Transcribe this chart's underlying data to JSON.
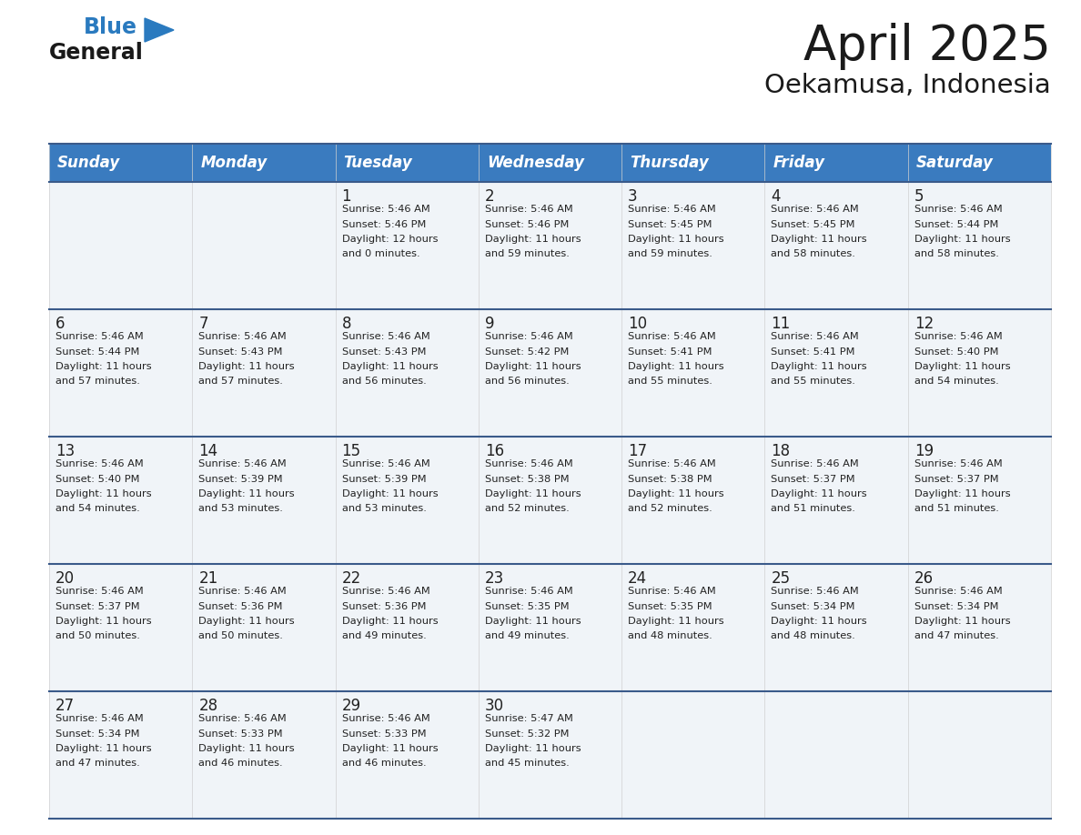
{
  "title": "April 2025",
  "subtitle": "Oekamusa, Indonesia",
  "header_color": "#3a7bbf",
  "header_text_color": "#ffffff",
  "cell_bg_light": "#f0f4f8",
  "cell_bg_white": "#ffffff",
  "border_color": "#3a5a8a",
  "day_headers": [
    "Sunday",
    "Monday",
    "Tuesday",
    "Wednesday",
    "Thursday",
    "Friday",
    "Saturday"
  ],
  "title_fontsize": 38,
  "subtitle_fontsize": 21,
  "header_fontsize": 12,
  "day_num_fontsize": 12,
  "cell_fontsize": 8.2,
  "logo_text1": "General",
  "logo_text2": "Blue",
  "logo_color1": "#1a1a1a",
  "logo_color2": "#2a7abf",
  "logo_triangle_color": "#2a7abf",
  "weeks": [
    [
      {
        "day": "",
        "sunrise": "",
        "sunset": "",
        "daylight": ""
      },
      {
        "day": "",
        "sunrise": "",
        "sunset": "",
        "daylight": ""
      },
      {
        "day": "1",
        "sunrise": "5:46 AM",
        "sunset": "5:46 PM",
        "daylight": "12 hours and 0 minutes."
      },
      {
        "day": "2",
        "sunrise": "5:46 AM",
        "sunset": "5:46 PM",
        "daylight": "11 hours and 59 minutes."
      },
      {
        "day": "3",
        "sunrise": "5:46 AM",
        "sunset": "5:45 PM",
        "daylight": "11 hours and 59 minutes."
      },
      {
        "day": "4",
        "sunrise": "5:46 AM",
        "sunset": "5:45 PM",
        "daylight": "11 hours and 58 minutes."
      },
      {
        "day": "5",
        "sunrise": "5:46 AM",
        "sunset": "5:44 PM",
        "daylight": "11 hours and 58 minutes."
      }
    ],
    [
      {
        "day": "6",
        "sunrise": "5:46 AM",
        "sunset": "5:44 PM",
        "daylight": "11 hours and 57 minutes."
      },
      {
        "day": "7",
        "sunrise": "5:46 AM",
        "sunset": "5:43 PM",
        "daylight": "11 hours and 57 minutes."
      },
      {
        "day": "8",
        "sunrise": "5:46 AM",
        "sunset": "5:43 PM",
        "daylight": "11 hours and 56 minutes."
      },
      {
        "day": "9",
        "sunrise": "5:46 AM",
        "sunset": "5:42 PM",
        "daylight": "11 hours and 56 minutes."
      },
      {
        "day": "10",
        "sunrise": "5:46 AM",
        "sunset": "5:41 PM",
        "daylight": "11 hours and 55 minutes."
      },
      {
        "day": "11",
        "sunrise": "5:46 AM",
        "sunset": "5:41 PM",
        "daylight": "11 hours and 55 minutes."
      },
      {
        "day": "12",
        "sunrise": "5:46 AM",
        "sunset": "5:40 PM",
        "daylight": "11 hours and 54 minutes."
      }
    ],
    [
      {
        "day": "13",
        "sunrise": "5:46 AM",
        "sunset": "5:40 PM",
        "daylight": "11 hours and 54 minutes."
      },
      {
        "day": "14",
        "sunrise": "5:46 AM",
        "sunset": "5:39 PM",
        "daylight": "11 hours and 53 minutes."
      },
      {
        "day": "15",
        "sunrise": "5:46 AM",
        "sunset": "5:39 PM",
        "daylight": "11 hours and 53 minutes."
      },
      {
        "day": "16",
        "sunrise": "5:46 AM",
        "sunset": "5:38 PM",
        "daylight": "11 hours and 52 minutes."
      },
      {
        "day": "17",
        "sunrise": "5:46 AM",
        "sunset": "5:38 PM",
        "daylight": "11 hours and 52 minutes."
      },
      {
        "day": "18",
        "sunrise": "5:46 AM",
        "sunset": "5:37 PM",
        "daylight": "11 hours and 51 minutes."
      },
      {
        "day": "19",
        "sunrise": "5:46 AM",
        "sunset": "5:37 PM",
        "daylight": "11 hours and 51 minutes."
      }
    ],
    [
      {
        "day": "20",
        "sunrise": "5:46 AM",
        "sunset": "5:37 PM",
        "daylight": "11 hours and 50 minutes."
      },
      {
        "day": "21",
        "sunrise": "5:46 AM",
        "sunset": "5:36 PM",
        "daylight": "11 hours and 50 minutes."
      },
      {
        "day": "22",
        "sunrise": "5:46 AM",
        "sunset": "5:36 PM",
        "daylight": "11 hours and 49 minutes."
      },
      {
        "day": "23",
        "sunrise": "5:46 AM",
        "sunset": "5:35 PM",
        "daylight": "11 hours and 49 minutes."
      },
      {
        "day": "24",
        "sunrise": "5:46 AM",
        "sunset": "5:35 PM",
        "daylight": "11 hours and 48 minutes."
      },
      {
        "day": "25",
        "sunrise": "5:46 AM",
        "sunset": "5:34 PM",
        "daylight": "11 hours and 48 minutes."
      },
      {
        "day": "26",
        "sunrise": "5:46 AM",
        "sunset": "5:34 PM",
        "daylight": "11 hours and 47 minutes."
      }
    ],
    [
      {
        "day": "27",
        "sunrise": "5:46 AM",
        "sunset": "5:34 PM",
        "daylight": "11 hours and 47 minutes."
      },
      {
        "day": "28",
        "sunrise": "5:46 AM",
        "sunset": "5:33 PM",
        "daylight": "11 hours and 46 minutes."
      },
      {
        "day": "29",
        "sunrise": "5:46 AM",
        "sunset": "5:33 PM",
        "daylight": "11 hours and 46 minutes."
      },
      {
        "day": "30",
        "sunrise": "5:47 AM",
        "sunset": "5:32 PM",
        "daylight": "11 hours and 45 minutes."
      },
      {
        "day": "",
        "sunrise": "",
        "sunset": "",
        "daylight": ""
      },
      {
        "day": "",
        "sunrise": "",
        "sunset": "",
        "daylight": ""
      },
      {
        "day": "",
        "sunrise": "",
        "sunset": "",
        "daylight": ""
      }
    ]
  ]
}
